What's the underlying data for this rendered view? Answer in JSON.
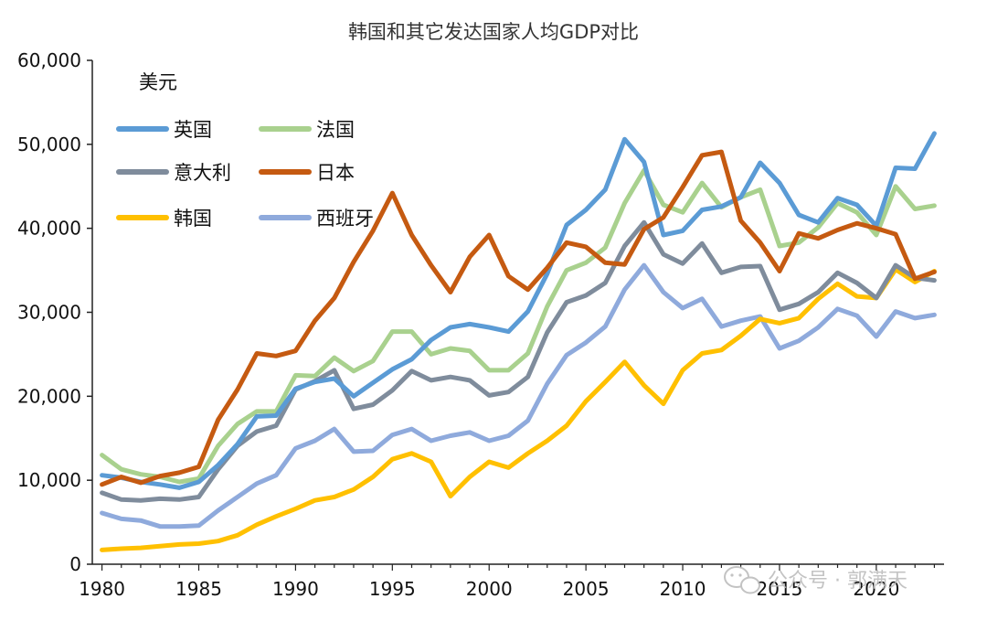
{
  "chart_data": {
    "type": "line",
    "title": "韩国和其它发达国家人均GDP对比",
    "unit_label": "美元",
    "xlabel": "",
    "ylabel": "",
    "xlim": [
      1980,
      2023
    ],
    "ylim": [
      0,
      60000
    ],
    "x_ticks": [
      "1980",
      "1985",
      "1990",
      "1995",
      "2000",
      "2005",
      "2010",
      "2015",
      "2020"
    ],
    "y_ticks": [
      "0",
      "10,000",
      "20,000",
      "30,000",
      "40,000",
      "50,000",
      "60,000"
    ],
    "grid": false,
    "legend_position": "top-left",
    "x": [
      1980,
      1981,
      1982,
      1983,
      1984,
      1985,
      1986,
      1987,
      1988,
      1989,
      1990,
      1991,
      1992,
      1993,
      1994,
      1995,
      1996,
      1997,
      1998,
      1999,
      2000,
      2001,
      2002,
      2003,
      2004,
      2005,
      2006,
      2007,
      2008,
      2009,
      2010,
      2011,
      2012,
      2013,
      2014,
      2015,
      2016,
      2017,
      2018,
      2019,
      2020,
      2021,
      2022,
      2023
    ],
    "series": [
      {
        "name": "英国",
        "color": "#5b9bd5",
        "values": [
          10600,
          10300,
          9800,
          9500,
          9100,
          9800,
          11800,
          14300,
          17600,
          17700,
          20900,
          21700,
          22100,
          20000,
          21600,
          23200,
          24400,
          26700,
          28200,
          28600,
          28200,
          27700,
          30100,
          34600,
          40400,
          42200,
          44600,
          50600,
          47900,
          39200,
          39700,
          42200,
          42600,
          43700,
          47800,
          45400,
          41600,
          40700,
          43600,
          42800,
          40300,
          47200,
          47100,
          51300
        ]
      },
      {
        "name": "法国",
        "color": "#a9d18e",
        "values": [
          13000,
          11300,
          10700,
          10400,
          9800,
          10200,
          14100,
          16700,
          18200,
          18200,
          22500,
          22400,
          24600,
          23000,
          24200,
          27700,
          27700,
          25000,
          25700,
          25400,
          23100,
          23100,
          25100,
          30700,
          35000,
          35900,
          37700,
          43000,
          46900,
          42800,
          41900,
          45400,
          42500,
          43700,
          44600,
          37900,
          38300,
          40100,
          43000,
          41900,
          39200,
          45000,
          42300,
          42700
        ]
      },
      {
        "name": "意大利",
        "color": "#7f8c9c",
        "values": [
          8500,
          7700,
          7600,
          7800,
          7700,
          8000,
          11300,
          14100,
          15800,
          16500,
          20800,
          21800,
          23100,
          18500,
          19000,
          20700,
          23000,
          21900,
          22300,
          21900,
          20100,
          20500,
          22300,
          27600,
          31200,
          32000,
          33500,
          37900,
          40700,
          36900,
          35800,
          38200,
          34700,
          35400,
          35500,
          30300,
          31000,
          32400,
          34700,
          33500,
          31700,
          35600,
          34100,
          33800
        ]
      },
      {
        "name": "日本",
        "color": "#c55a11",
        "values": [
          9500,
          10400,
          9700,
          10500,
          10900,
          11600,
          17200,
          20800,
          25100,
          24800,
          25400,
          29000,
          31700,
          36000,
          39700,
          44200,
          39200,
          35600,
          32400,
          36600,
          39200,
          34300,
          32700,
          35300,
          38300,
          37800,
          35900,
          35700,
          39900,
          41300,
          44900,
          48700,
          49100,
          40900,
          38300,
          34900,
          39400,
          38800,
          39800,
          40600,
          40000,
          39300,
          34000,
          34800
        ]
      },
      {
        "name": "韩国",
        "color": "#ffc000",
        "values": [
          1700,
          1850,
          1950,
          2150,
          2350,
          2450,
          2750,
          3450,
          4700,
          5700,
          6600,
          7600,
          8000,
          8900,
          10400,
          12500,
          13200,
          12200,
          8100,
          10400,
          12200,
          11500,
          13200,
          14700,
          16500,
          19400,
          21700,
          24100,
          21300,
          19100,
          23100,
          25100,
          25500,
          27200,
          29200,
          28700,
          29300,
          31600,
          33400,
          31900,
          31700,
          35100,
          33600,
          34900
        ]
      },
      {
        "name": "西班牙",
        "color": "#8faadc",
        "values": [
          6100,
          5400,
          5200,
          4500,
          4500,
          4600,
          6400,
          8000,
          9600,
          10600,
          13800,
          14700,
          16100,
          13400,
          13500,
          15400,
          16100,
          14700,
          15300,
          15700,
          14700,
          15300,
          17100,
          21500,
          24900,
          26400,
          28300,
          32700,
          35600,
          32400,
          30500,
          31600,
          28300,
          29000,
          29500,
          25700,
          26600,
          28200,
          30400,
          29600,
          27100,
          30100,
          29300,
          29700
        ]
      }
    ]
  },
  "watermark": {
    "text": "公众号 · 郭满天",
    "icon": "wechat-icon"
  }
}
